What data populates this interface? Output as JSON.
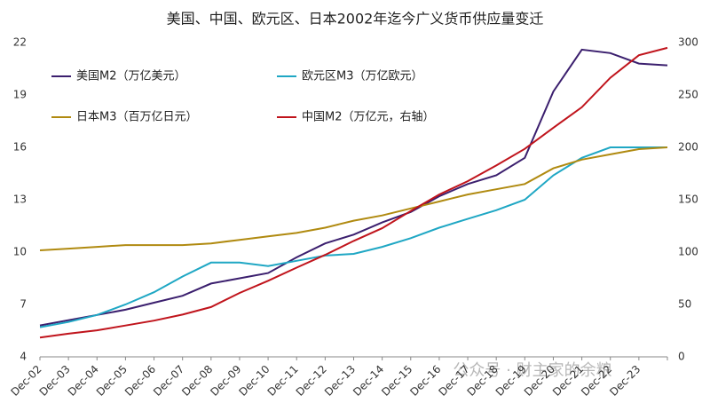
{
  "chart_data": {
    "type": "line",
    "title": "美国、中国、欧元区、日本2002年迄今广义货币供应量变迁",
    "watermark": "公众号 · 财主家的余粮",
    "categories": [
      "Dec-02",
      "Dec-03",
      "Dec-04",
      "Dec-05",
      "Dec-06",
      "Dec-07",
      "Dec-08",
      "Dec-09",
      "Dec-10",
      "Dec-11",
      "Dec-12",
      "Dec-13",
      "Dec-14",
      "Dec-15",
      "Dec-16",
      "Dec-17",
      "Dec-18",
      "Dec-19",
      "Dec-20",
      "Dec-21",
      "Dec-22",
      "Dec-23",
      null
    ],
    "ylim": [
      4,
      22
    ],
    "yticks": [
      4,
      7,
      10,
      13,
      16,
      19,
      22
    ],
    "y2lim": [
      0,
      300
    ],
    "y2ticks": [
      0,
      50,
      100,
      150,
      200,
      250,
      300
    ],
    "series": [
      {
        "name": "美国M2（万亿美元）",
        "color": "#3b1f6e",
        "values": [
          5.8,
          6.1,
          6.4,
          6.7,
          7.1,
          7.5,
          8.2,
          8.5,
          8.8,
          9.7,
          10.5,
          11.0,
          11.7,
          12.3,
          13.2,
          13.9,
          14.4,
          15.4,
          19.2,
          21.6,
          21.4,
          20.8,
          20.7
        ]
      },
      {
        "name": "欧元区M3（万亿欧元）",
        "color": "#1fa7c4",
        "values": [
          5.7,
          6.0,
          6.4,
          7.0,
          7.7,
          8.6,
          9.4,
          9.4,
          9.2,
          9.5,
          9.8,
          9.9,
          10.3,
          10.8,
          11.4,
          11.9,
          12.4,
          13.0,
          14.4,
          15.4,
          16.0,
          16.0,
          16.0
        ]
      },
      {
        "name": "日本M3（百万亿日元）",
        "color": "#b08a10",
        "values": [
          10.1,
          10.2,
          10.3,
          10.4,
          10.4,
          10.4,
          10.5,
          10.7,
          10.9,
          11.1,
          11.4,
          11.8,
          12.1,
          12.5,
          12.9,
          13.3,
          13.6,
          13.9,
          14.8,
          15.3,
          15.6,
          15.9,
          16.0
        ]
      },
      {
        "name": "中国M2（万亿元，右轴）",
        "color": "#c0141c",
        "axis": "y2",
        "values": [
          18.5,
          22.1,
          25.3,
          29.9,
          34.6,
          40.3,
          47.5,
          61,
          72.6,
          85.2,
          97.4,
          110.7,
          122.8,
          139.2,
          155,
          167.7,
          182.7,
          198.6,
          218.7,
          238.3,
          266.4,
          288,
          295
        ]
      }
    ]
  }
}
